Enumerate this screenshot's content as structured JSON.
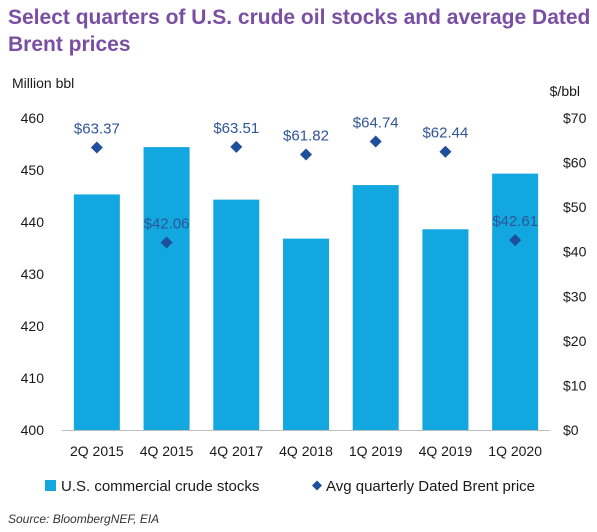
{
  "title": "Select quarters of U.S. crude oil stocks and average Dated Brent prices",
  "source": "Source: BloombergNEF, EIA",
  "colors": {
    "title": "#7a4fa3",
    "bars": "#12a7de",
    "diamonds": "#1f4e9a",
    "price_labels": "#2f5597",
    "text": "#1a1a1a"
  },
  "chart_data": {
    "type": "bar",
    "categories": [
      "2Q 2015",
      "4Q 2015",
      "4Q 2017",
      "4Q 2018",
      "1Q 2019",
      "4Q 2019",
      "1Q 2020"
    ],
    "ylabel": "Million bbl",
    "y2label": "$/bbl",
    "ylim": [
      400,
      460
    ],
    "y2lim": [
      0,
      70
    ],
    "yticks": [
      "400",
      "410",
      "420",
      "430",
      "440",
      "450",
      "460"
    ],
    "y2ticks": [
      "$0",
      "$10",
      "$20",
      "$30",
      "$40",
      "$50",
      "$60",
      "$70"
    ],
    "grid": false,
    "legend_position": "bottom",
    "series": [
      {
        "name": "U.S. commercial crude stocks",
        "type": "bar",
        "axis": "left",
        "values": [
          445.3,
          454.4,
          444.3,
          436.8,
          447.1,
          438.6,
          449.3
        ]
      },
      {
        "name": "Avg quarterly Dated Brent price",
        "type": "scatter",
        "axis": "right",
        "values": [
          63.37,
          42.06,
          63.51,
          61.82,
          64.74,
          62.44,
          42.61
        ],
        "labels": [
          "$63.37",
          "$42.06",
          "$63.51",
          "$61.82",
          "$64.74",
          "$62.44",
          "$42.61"
        ]
      }
    ]
  }
}
